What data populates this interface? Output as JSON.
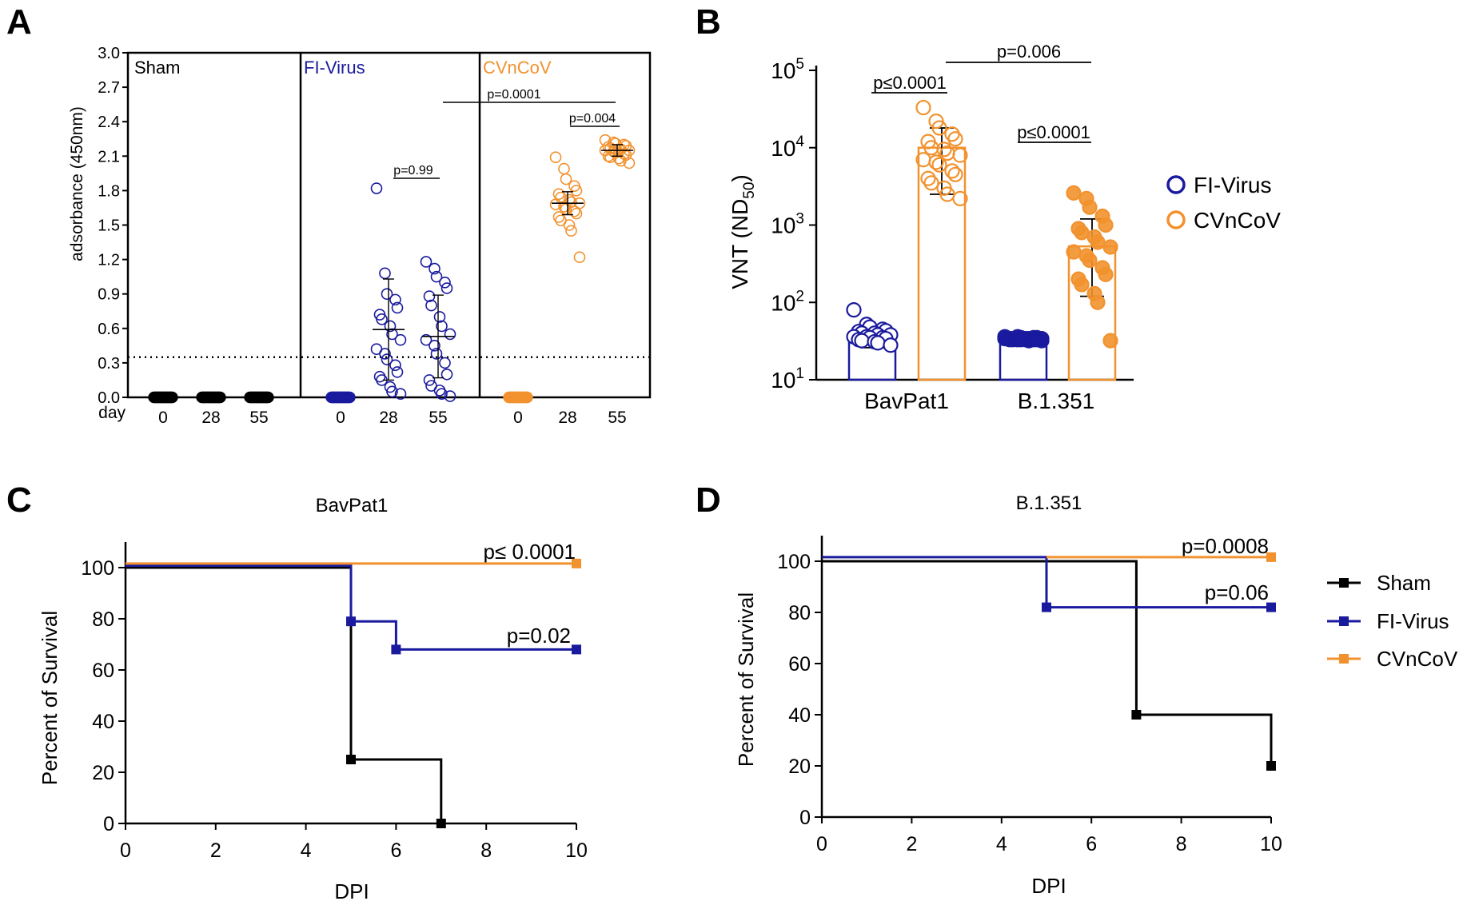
{
  "colors": {
    "sham": "#000000",
    "fi": "#1a1a9e",
    "cv": "#f2922e",
    "axis": "#000000"
  },
  "panel_letters": [
    "A",
    "B",
    "C",
    "D"
  ],
  "chart_data": [
    {
      "id": "A",
      "type": "scatter",
      "ylabel": "adsorbance (450nm)",
      "ylim": [
        0,
        3.0
      ],
      "yticks": [
        "0.0",
        "0.3",
        "0.6",
        "0.9",
        "1.2",
        "1.5",
        "1.8",
        "2.1",
        "2.4",
        "2.7",
        "3.0"
      ],
      "day_label": "day",
      "threshold": 0.35,
      "groups": [
        {
          "name": "Sham",
          "color_key": "sham",
          "days": [
            {
              "day": "0",
              "values": [
                0,
                0,
                0,
                0,
                0,
                0,
                0,
                0,
                0,
                0,
                0,
                0,
                0,
                0,
                0,
                0,
                0,
                0,
                0,
                0
              ],
              "mean": null,
              "sd": null
            },
            {
              "day": "28",
              "values": [
                0,
                0,
                0,
                0,
                0,
                0,
                0,
                0,
                0,
                0,
                0,
                0,
                0,
                0,
                0,
                0,
                0,
                0,
                0,
                0
              ],
              "mean": null,
              "sd": null
            },
            {
              "day": "55",
              "values": [
                0,
                0,
                0,
                0,
                0,
                0,
                0,
                0,
                0,
                0,
                0,
                0,
                0,
                0,
                0,
                0,
                0,
                0,
                0,
                0
              ],
              "mean": null,
              "sd": null
            }
          ]
        },
        {
          "name": "FI-Virus",
          "color_key": "fi",
          "days": [
            {
              "day": "0",
              "values": [
                0,
                0,
                0,
                0,
                0,
                0,
                0,
                0,
                0,
                0,
                0,
                0,
                0,
                0,
                0,
                0,
                0,
                0,
                0,
                0
              ],
              "mean": null,
              "sd": null
            },
            {
              "day": "28",
              "values": [
                1.82,
                1.08,
                0.9,
                0.85,
                0.78,
                0.72,
                0.68,
                0.62,
                0.55,
                0.5,
                0.42,
                0.38,
                0.33,
                0.28,
                0.22,
                0.18,
                0.15,
                0.09,
                0.05,
                0.03
              ],
              "mean": 0.59,
              "sd": 0.44
            },
            {
              "day": "55",
              "values": [
                1.18,
                1.12,
                1.05,
                1.0,
                0.95,
                0.88,
                0.8,
                0.7,
                0.62,
                0.55,
                0.5,
                0.45,
                0.38,
                0.3,
                0.2,
                0.15,
                0.1,
                0.06,
                0.03,
                0.01
              ],
              "mean": 0.53,
              "sd": 0.36
            }
          ]
        },
        {
          "name": "CVnCoV",
          "color_key": "cv",
          "days": [
            {
              "day": "0",
              "values": [
                0,
                0,
                0,
                0,
                0,
                0,
                0,
                0,
                0,
                0,
                0,
                0,
                0,
                0,
                0,
                0,
                0,
                0,
                0,
                0
              ],
              "mean": null,
              "sd": null
            },
            {
              "day": "28",
              "values": [
                2.09,
                1.99,
                1.9,
                1.84,
                1.8,
                1.77,
                1.74,
                1.72,
                1.7,
                1.69,
                1.68,
                1.66,
                1.64,
                1.62,
                1.6,
                1.57,
                1.54,
                1.5,
                1.45,
                1.22
              ],
              "mean": 1.69,
              "sd": 0.1
            },
            {
              "day": "55",
              "values": [
                2.24,
                2.22,
                2.21,
                2.2,
                2.19,
                2.18,
                2.17,
                2.16,
                2.16,
                2.15,
                2.15,
                2.14,
                2.13,
                2.12,
                2.11,
                2.1,
                2.09,
                2.08,
                2.06,
                2.04
              ],
              "mean": 2.15,
              "sd": 0.05
            }
          ]
        }
      ],
      "annotations": [
        "p=0.99",
        "p=0.004",
        "p=0.0001"
      ]
    },
    {
      "id": "B",
      "type": "bar",
      "ylabel_main": "VNT (ND",
      "ylabel_sub": "50",
      "ylabel_end": ")",
      "yscale": "log",
      "ylim_exp": [
        1,
        5
      ],
      "ytick_base": "10",
      "ytick_exps": [
        "1",
        "2",
        "3",
        "4",
        "5"
      ],
      "categories": [
        "BavPat1",
        "B.1.351"
      ],
      "series": [
        {
          "name": "FI-Virus",
          "color_key": "fi",
          "means": [
            36,
            34
          ],
          "sd_low": [
            26,
            33
          ],
          "sd_high": [
            47,
            35
          ],
          "points": [
            [
              80,
              52,
              48,
              45,
              43,
              42,
              40,
              40,
              38,
              38,
              36,
              36,
              35,
              35,
              34,
              33,
              32,
              31,
              30,
              28
            ],
            [
              36,
              36,
              35,
              35,
              35,
              34,
              34,
              34,
              34,
              34,
              34,
              33,
              33,
              33,
              33,
              33,
              33,
              33,
              32,
              32
            ]
          ]
        },
        {
          "name": "CVnCoV",
          "color_key": "cv",
          "means": [
            10000,
            530
          ],
          "sd_low": [
            2500,
            120
          ],
          "sd_high": [
            18000,
            1200
          ],
          "points": [
            [
              33000,
              22000,
              18000,
              15000,
              13000,
              12000,
              10000,
              9500,
              8500,
              8000,
              7000,
              6500,
              6000,
              5000,
              4500,
              4000,
              3500,
              3000,
              2500,
              2200
            ],
            [
              2600,
              2200,
              1700,
              1300,
              1000,
              900,
              800,
              700,
              600,
              520,
              450,
              400,
              350,
              280,
              230,
              200,
              170,
              130,
              100,
              32
            ]
          ]
        }
      ],
      "annotations": [
        "p≤0.0001",
        "p≤0.0001",
        "p=0.006"
      ],
      "legend": [
        "FI-Virus",
        "CVnCoV"
      ]
    },
    {
      "id": "C",
      "type": "line",
      "title": "BavPat1",
      "xlabel": "DPI",
      "ylabel": "Percent of Survival",
      "xlim": [
        0,
        10
      ],
      "ylim": [
        0,
        110
      ],
      "xticks": [
        "0",
        "2",
        "4",
        "6",
        "8",
        "10"
      ],
      "yticks": [
        "0",
        "20",
        "40",
        "60",
        "80",
        "100"
      ],
      "series": [
        {
          "name": "Sham",
          "color_key": "sham",
          "x": [
            0,
            5,
            5,
            7,
            7
          ],
          "y": [
            100,
            100,
            25,
            25,
            0
          ],
          "markers": [
            [
              5,
              25
            ],
            [
              7,
              0
            ]
          ]
        },
        {
          "name": "FI-Virus",
          "color_key": "fi",
          "x": [
            0,
            5,
            5,
            6,
            6,
            10
          ],
          "y": [
            100.8,
            100.8,
            79,
            79,
            68,
            68
          ],
          "markers": [
            [
              5,
              79
            ],
            [
              6,
              68
            ],
            [
              10,
              68
            ]
          ]
        },
        {
          "name": "CVnCoV",
          "color_key": "cv",
          "x": [
            0,
            10
          ],
          "y": [
            101.6,
            101.6
          ],
          "markers": [
            [
              10,
              101.6
            ]
          ]
        }
      ],
      "annotations": [
        {
          "text": "p≤ 0.0001",
          "x": 10,
          "y": 101.6
        },
        {
          "text": "p=0.02",
          "x": 10,
          "y": 68
        }
      ]
    },
    {
      "id": "D",
      "type": "line",
      "title": "B.1.351",
      "xlabel": "DPI",
      "ylabel": "Percent of Survival",
      "xlim": [
        0,
        10
      ],
      "ylim": [
        0,
        110
      ],
      "xticks": [
        "0",
        "2",
        "4",
        "6",
        "8",
        "10"
      ],
      "yticks": [
        "0",
        "20",
        "40",
        "60",
        "80",
        "100"
      ],
      "series": [
        {
          "name": "Sham",
          "color_key": "sham",
          "x": [
            0,
            7,
            7,
            10,
            10
          ],
          "y": [
            100,
            100,
            40,
            40,
            20
          ],
          "markers": [
            [
              7,
              40
            ],
            [
              10,
              20
            ]
          ]
        },
        {
          "name": "FI-Virus",
          "color_key": "fi",
          "x": [
            0,
            5,
            5,
            10
          ],
          "y": [
            101.6,
            101.6,
            82,
            82
          ],
          "markers": [
            [
              5,
              82
            ],
            [
              10,
              82
            ]
          ]
        },
        {
          "name": "CVnCoV",
          "color_key": "cv",
          "x": [
            5,
            10
          ],
          "y": [
            101.6,
            101.6
          ],
          "markers": [
            [
              10,
              101.6
            ]
          ]
        }
      ],
      "annotations": [
        {
          "text": "p=0.0008",
          "x": 10,
          "y": 101.6
        },
        {
          "text": "p=0.06",
          "x": 10,
          "y": 82
        }
      ],
      "legend": [
        "Sham",
        "FI-Virus",
        "CVnCoV"
      ]
    }
  ]
}
